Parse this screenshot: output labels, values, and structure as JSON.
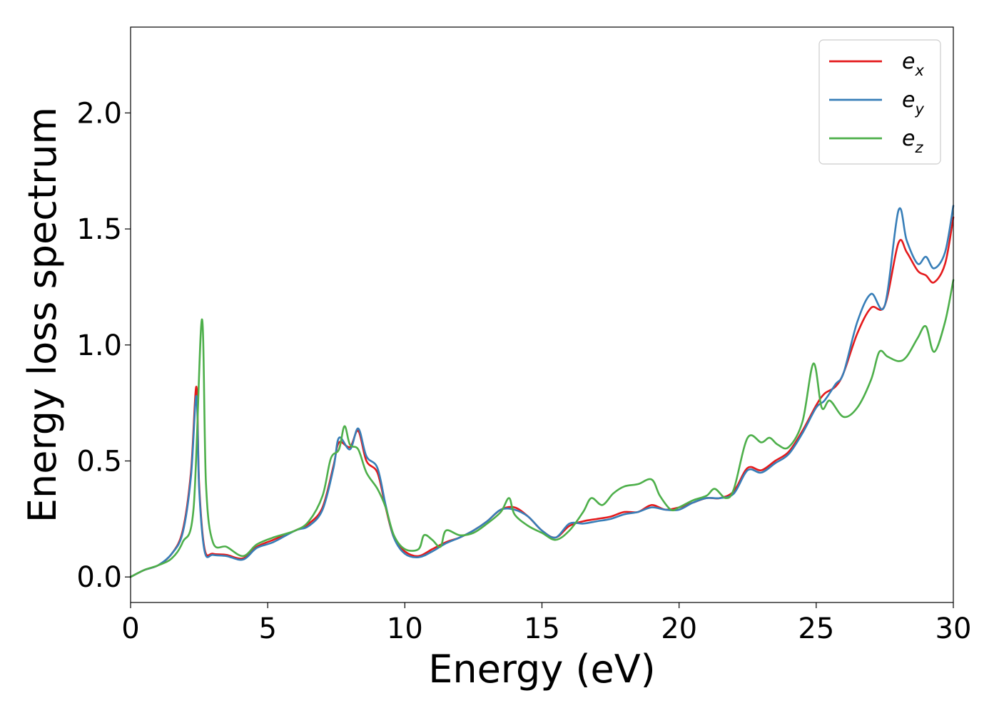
{
  "chart_data": {
    "type": "line",
    "title": "",
    "xlabel": "Energy (eV)",
    "ylabel": "Energy loss spectrum",
    "xlim": [
      0,
      30
    ],
    "ylim": [
      -0.11,
      2.37
    ],
    "xticks": [
      0,
      5,
      10,
      15,
      20,
      25,
      30
    ],
    "xtick_labels": [
      "0",
      "5",
      "10",
      "15",
      "20",
      "25",
      "30"
    ],
    "yticks": [
      0.0,
      0.5,
      1.0,
      1.5,
      2.0
    ],
    "ytick_labels": [
      "0.0",
      "0.5",
      "1.0",
      "1.5",
      "2.0"
    ],
    "grid": false,
    "legend_position": "top-right",
    "series": [
      {
        "name": "e_x",
        "legend_base": "e",
        "legend_sub": "x",
        "color": "#e41a1c",
        "points": [
          [
            0,
            0
          ],
          [
            0.5,
            0.03
          ],
          [
            1,
            0.05
          ],
          [
            1.5,
            0.1
          ],
          [
            1.9,
            0.2
          ],
          [
            2.2,
            0.45
          ],
          [
            2.4,
            0.82
          ],
          [
            2.5,
            0.4
          ],
          [
            2.7,
            0.12
          ],
          [
            3,
            0.1
          ],
          [
            3.5,
            0.095
          ],
          [
            4.1,
            0.08
          ],
          [
            4.6,
            0.13
          ],
          [
            5.2,
            0.16
          ],
          [
            6,
            0.2
          ],
          [
            6.5,
            0.23
          ],
          [
            7,
            0.3
          ],
          [
            7.4,
            0.48
          ],
          [
            7.6,
            0.58
          ],
          [
            8,
            0.56
          ],
          [
            8.3,
            0.63
          ],
          [
            8.6,
            0.5
          ],
          [
            9,
            0.45
          ],
          [
            9.3,
            0.3
          ],
          [
            9.6,
            0.17
          ],
          [
            10,
            0.11
          ],
          [
            10.5,
            0.09
          ],
          [
            11,
            0.12
          ],
          [
            11.5,
            0.15
          ],
          [
            12,
            0.17
          ],
          [
            12.5,
            0.2
          ],
          [
            13,
            0.24
          ],
          [
            13.5,
            0.29
          ],
          [
            14,
            0.3
          ],
          [
            14.5,
            0.26
          ],
          [
            15,
            0.2
          ],
          [
            15.5,
            0.17
          ],
          [
            16,
            0.22
          ],
          [
            16.5,
            0.24
          ],
          [
            17,
            0.25
          ],
          [
            17.5,
            0.26
          ],
          [
            18,
            0.28
          ],
          [
            18.5,
            0.28
          ],
          [
            19,
            0.31
          ],
          [
            19.5,
            0.29
          ],
          [
            20,
            0.3
          ],
          [
            20.5,
            0.32
          ],
          [
            21,
            0.34
          ],
          [
            21.5,
            0.34
          ],
          [
            22,
            0.37
          ],
          [
            22.5,
            0.47
          ],
          [
            23,
            0.46
          ],
          [
            23.5,
            0.5
          ],
          [
            24,
            0.54
          ],
          [
            24.5,
            0.63
          ],
          [
            25,
            0.74
          ],
          [
            25.3,
            0.79
          ],
          [
            25.7,
            0.82
          ],
          [
            26,
            0.88
          ],
          [
            26.5,
            1.05
          ],
          [
            27,
            1.16
          ],
          [
            27.5,
            1.17
          ],
          [
            28,
            1.44
          ],
          [
            28.3,
            1.4
          ],
          [
            28.7,
            1.32
          ],
          [
            29,
            1.3
          ],
          [
            29.3,
            1.27
          ],
          [
            29.7,
            1.35
          ],
          [
            30,
            1.55
          ]
        ]
      },
      {
        "name": "e_y",
        "legend_base": "e",
        "legend_sub": "y",
        "color": "#377eb8",
        "points": [
          [
            0,
            0
          ],
          [
            0.5,
            0.03
          ],
          [
            1,
            0.05
          ],
          [
            1.5,
            0.1
          ],
          [
            1.9,
            0.19
          ],
          [
            2.2,
            0.43
          ],
          [
            2.4,
            0.78
          ],
          [
            2.5,
            0.38
          ],
          [
            2.7,
            0.11
          ],
          [
            3,
            0.095
          ],
          [
            3.5,
            0.09
          ],
          [
            4.1,
            0.075
          ],
          [
            4.6,
            0.125
          ],
          [
            5.2,
            0.15
          ],
          [
            6,
            0.2
          ],
          [
            6.5,
            0.22
          ],
          [
            7,
            0.29
          ],
          [
            7.4,
            0.47
          ],
          [
            7.6,
            0.6
          ],
          [
            8,
            0.55
          ],
          [
            8.3,
            0.64
          ],
          [
            8.6,
            0.52
          ],
          [
            9,
            0.47
          ],
          [
            9.3,
            0.31
          ],
          [
            9.6,
            0.17
          ],
          [
            10,
            0.1
          ],
          [
            10.5,
            0.085
          ],
          [
            11,
            0.11
          ],
          [
            11.5,
            0.145
          ],
          [
            12,
            0.17
          ],
          [
            12.5,
            0.2
          ],
          [
            13,
            0.24
          ],
          [
            13.5,
            0.29
          ],
          [
            14,
            0.29
          ],
          [
            14.5,
            0.26
          ],
          [
            15,
            0.2
          ],
          [
            15.5,
            0.17
          ],
          [
            16,
            0.23
          ],
          [
            16.5,
            0.23
          ],
          [
            17,
            0.24
          ],
          [
            17.5,
            0.25
          ],
          [
            18,
            0.27
          ],
          [
            18.5,
            0.28
          ],
          [
            19,
            0.3
          ],
          [
            19.5,
            0.29
          ],
          [
            20,
            0.29
          ],
          [
            20.5,
            0.32
          ],
          [
            21,
            0.34
          ],
          [
            21.5,
            0.34
          ],
          [
            22,
            0.36
          ],
          [
            22.5,
            0.46
          ],
          [
            23,
            0.45
          ],
          [
            23.5,
            0.49
          ],
          [
            24,
            0.53
          ],
          [
            24.5,
            0.62
          ],
          [
            25,
            0.73
          ],
          [
            25.3,
            0.76
          ],
          [
            25.7,
            0.83
          ],
          [
            26,
            0.88
          ],
          [
            26.5,
            1.1
          ],
          [
            27,
            1.22
          ],
          [
            27.5,
            1.17
          ],
          [
            28,
            1.58
          ],
          [
            28.3,
            1.45
          ],
          [
            28.7,
            1.35
          ],
          [
            29,
            1.38
          ],
          [
            29.3,
            1.33
          ],
          [
            29.7,
            1.4
          ],
          [
            30,
            1.6
          ]
        ]
      },
      {
        "name": "e_z",
        "legend_base": "e",
        "legend_sub": "z",
        "color": "#4daf4a",
        "points": [
          [
            0,
            0
          ],
          [
            0.5,
            0.03
          ],
          [
            1,
            0.05
          ],
          [
            1.5,
            0.08
          ],
          [
            1.9,
            0.15
          ],
          [
            2.3,
            0.3
          ],
          [
            2.6,
            1.11
          ],
          [
            2.75,
            0.4
          ],
          [
            3,
            0.15
          ],
          [
            3.5,
            0.13
          ],
          [
            4.1,
            0.09
          ],
          [
            4.6,
            0.14
          ],
          [
            5.2,
            0.17
          ],
          [
            6,
            0.2
          ],
          [
            6.5,
            0.24
          ],
          [
            7,
            0.35
          ],
          [
            7.3,
            0.51
          ],
          [
            7.6,
            0.55
          ],
          [
            7.8,
            0.65
          ],
          [
            8,
            0.57
          ],
          [
            8.3,
            0.55
          ],
          [
            8.6,
            0.45
          ],
          [
            9,
            0.38
          ],
          [
            9.3,
            0.3
          ],
          [
            9.6,
            0.18
          ],
          [
            10,
            0.12
          ],
          [
            10.5,
            0.12
          ],
          [
            10.7,
            0.18
          ],
          [
            11,
            0.16
          ],
          [
            11.3,
            0.13
          ],
          [
            11.5,
            0.2
          ],
          [
            12,
            0.18
          ],
          [
            12.5,
            0.19
          ],
          [
            13,
            0.23
          ],
          [
            13.5,
            0.28
          ],
          [
            13.8,
            0.34
          ],
          [
            14,
            0.27
          ],
          [
            14.5,
            0.22
          ],
          [
            15,
            0.19
          ],
          [
            15.5,
            0.16
          ],
          [
            16,
            0.2
          ],
          [
            16.5,
            0.28
          ],
          [
            16.8,
            0.34
          ],
          [
            17.2,
            0.31
          ],
          [
            17.6,
            0.36
          ],
          [
            18,
            0.39
          ],
          [
            18.5,
            0.4
          ],
          [
            19,
            0.42
          ],
          [
            19.3,
            0.35
          ],
          [
            19.7,
            0.29
          ],
          [
            20,
            0.3
          ],
          [
            20.5,
            0.33
          ],
          [
            21,
            0.35
          ],
          [
            21.3,
            0.38
          ],
          [
            21.7,
            0.34
          ],
          [
            22,
            0.38
          ],
          [
            22.5,
            0.6
          ],
          [
            23,
            0.58
          ],
          [
            23.3,
            0.6
          ],
          [
            23.6,
            0.57
          ],
          [
            24,
            0.56
          ],
          [
            24.5,
            0.67
          ],
          [
            24.9,
            0.92
          ],
          [
            25.2,
            0.73
          ],
          [
            25.5,
            0.76
          ],
          [
            26,
            0.69
          ],
          [
            26.5,
            0.73
          ],
          [
            27,
            0.85
          ],
          [
            27.3,
            0.97
          ],
          [
            27.6,
            0.95
          ],
          [
            28,
            0.93
          ],
          [
            28.3,
            0.95
          ],
          [
            28.7,
            1.03
          ],
          [
            29,
            1.08
          ],
          [
            29.3,
            0.97
          ],
          [
            29.7,
            1.1
          ],
          [
            30,
            1.28
          ]
        ]
      }
    ]
  }
}
